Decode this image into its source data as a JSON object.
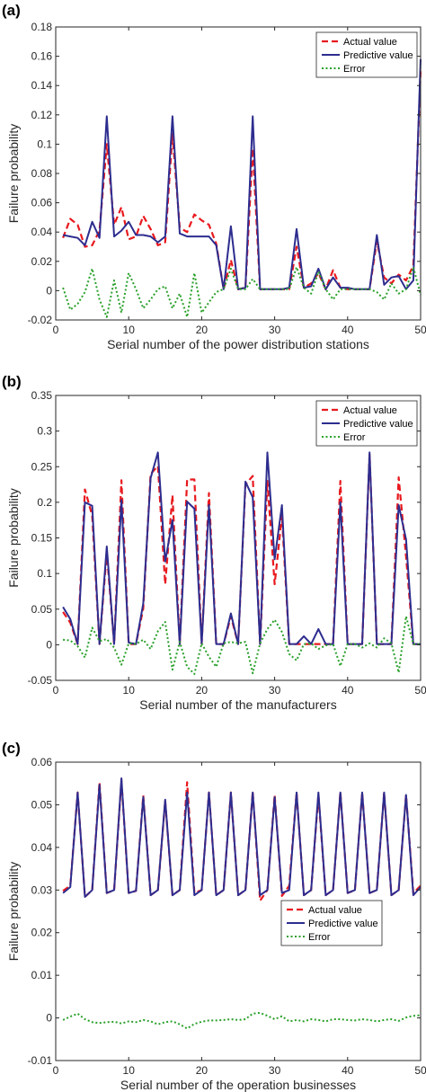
{
  "chart_data": [
    {
      "type": "line",
      "panel_label": "(a)",
      "xlabel": "Serial number of the power distribution stations",
      "ylabel": "Failure probability",
      "xlim": [
        0,
        50
      ],
      "ylim": [
        -0.02,
        0.18
      ],
      "xticks": [
        0,
        10,
        20,
        30,
        40,
        50
      ],
      "xtick_labels": [
        "0",
        "10",
        "20",
        "30",
        "40",
        "50"
      ],
      "yticks": [
        -0.02,
        0,
        0.02,
        0.04,
        0.06,
        0.08,
        0.1,
        0.12,
        0.14,
        0.16,
        0.18
      ],
      "ytick_labels": [
        "-0.02",
        "0",
        "0.02",
        "0.04",
        "0.06",
        "0.08",
        "0.1",
        "0.12",
        "0.14",
        "0.16",
        "0.18"
      ],
      "grid": false,
      "legend_position": "top-right",
      "x": [
        1,
        2,
        3,
        4,
        5,
        6,
        7,
        8,
        9,
        10,
        11,
        12,
        13,
        14,
        15,
        16,
        17,
        18,
        19,
        20,
        21,
        22,
        23,
        24,
        25,
        26,
        27,
        28,
        29,
        30,
        31,
        32,
        33,
        34,
        35,
        36,
        37,
        38,
        39,
        40,
        41,
        42,
        43,
        44,
        45,
        46,
        47,
        48,
        49,
        50
      ],
      "series": [
        {
          "name": "Actual value",
          "color": "#e8191e",
          "dash": "dashed",
          "values": [
            0.036,
            0.049,
            0.045,
            0.03,
            0.031,
            0.041,
            0.1,
            0.045,
            0.057,
            0.035,
            0.037,
            0.051,
            0.042,
            0.031,
            0.033,
            0.107,
            0.043,
            0.04,
            0.052,
            0.048,
            0.045,
            0.032,
            0.001,
            0.021,
            0.001,
            0.002,
            0.097,
            0.001,
            0.001,
            0.001,
            0.001,
            0.001,
            0.03,
            0.002,
            0.005,
            0.012,
            0.001,
            0.014,
            0.002,
            0.001,
            0.001,
            0.001,
            0.001,
            0.034,
            0.009,
            0.005,
            0.011,
            0.007,
            0.017,
            0.15
          ]
        },
        {
          "name": "Predictive value",
          "color": "#2d2d8f",
          "dash": "solid",
          "values": [
            0.038,
            0.037,
            0.036,
            0.031,
            0.047,
            0.036,
            0.119,
            0.037,
            0.041,
            0.047,
            0.038,
            0.038,
            0.037,
            0.033,
            0.037,
            0.119,
            0.039,
            0.037,
            0.037,
            0.037,
            0.037,
            0.031,
            0.001,
            0.044,
            0.001,
            0.002,
            0.119,
            0.001,
            0.001,
            0.001,
            0.001,
            0.002,
            0.042,
            0.002,
            0.003,
            0.015,
            0.001,
            0.009,
            0.002,
            0.002,
            0.001,
            0.001,
            0.001,
            0.038,
            0.004,
            0.009,
            0.01,
            0.001,
            0.007,
            0.158
          ]
        },
        {
          "name": "Error",
          "color": "#2aa02a",
          "dash": "dotted",
          "values": [
            0.002,
            -0.013,
            -0.009,
            -0.001,
            0.015,
            -0.006,
            -0.018,
            0.007,
            -0.015,
            0.012,
            0.001,
            -0.012,
            -0.006,
            0.001,
            0.003,
            -0.012,
            -0.002,
            -0.018,
            0.012,
            -0.015,
            -0.008,
            -0.001,
            0.001,
            0.015,
            0.001,
            0.001,
            0.008,
            0.001,
            0.001,
            0.001,
            0.001,
            0.001,
            0.016,
            0.002,
            -0.002,
            0.013,
            0.001,
            -0.006,
            0.001,
            0.001,
            0.001,
            0.001,
            0.001,
            -0.001,
            -0.006,
            0.005,
            -0.002,
            0.001,
            0.016,
            -0.003
          ]
        }
      ]
    },
    {
      "type": "line",
      "panel_label": "(b)",
      "xlabel": "Serial number of the manufacturers",
      "ylabel": "Failure probability",
      "xlim": [
        0,
        50
      ],
      "ylim": [
        -0.05,
        0.35
      ],
      "xticks": [
        0,
        10,
        20,
        30,
        40,
        50
      ],
      "xtick_labels": [
        "0",
        "10",
        "20",
        "30",
        "40",
        "50"
      ],
      "yticks": [
        -0.05,
        0,
        0.05,
        0.1,
        0.15,
        0.2,
        0.25,
        0.3,
        0.35
      ],
      "ytick_labels": [
        "-0.05",
        "0",
        "0.05",
        "0.1",
        "0.15",
        "0.2",
        "0.25",
        "0.3",
        "0.35"
      ],
      "grid": false,
      "legend_position": "top-right",
      "x": [
        1,
        2,
        3,
        4,
        5,
        6,
        7,
        8,
        9,
        10,
        11,
        12,
        13,
        14,
        15,
        16,
        17,
        18,
        19,
        20,
        21,
        22,
        23,
        24,
        25,
        26,
        27,
        28,
        29,
        30,
        31,
        32,
        33,
        34,
        35,
        36,
        37,
        38,
        39,
        40,
        41,
        42,
        43,
        44,
        45,
        46,
        47,
        48,
        49,
        50
      ],
      "series": [
        {
          "name": "Actual value",
          "color": "#e8191e",
          "dash": "dashed",
          "values": [
            0.046,
            0.031,
            0.001,
            0.218,
            0.181,
            0.001,
            0.13,
            0.001,
            0.231,
            0.001,
            0.001,
            0.051,
            0.24,
            0.251,
            0.085,
            0.21,
            0.001,
            0.232,
            0.232,
            0.001,
            0.213,
            0.001,
            0.001,
            0.04,
            0.001,
            0.225,
            0.237,
            0.001,
            0.23,
            0.085,
            0.181,
            0.001,
            0.001,
            0.001,
            0.001,
            0.001,
            0.001,
            0.001,
            0.23,
            0.001,
            0.001,
            0.001,
            0.268,
            0.001,
            0.001,
            0.001,
            0.235,
            0.124,
            0.001,
            0.001
          ]
        },
        {
          "name": "Predictive value",
          "color": "#2d2d8f",
          "dash": "solid",
          "values": [
            0.053,
            0.036,
            0.001,
            0.2,
            0.195,
            0.001,
            0.138,
            0.001,
            0.203,
            0.003,
            0.001,
            0.058,
            0.234,
            0.27,
            0.117,
            0.175,
            0.001,
            0.201,
            0.191,
            0.001,
            0.196,
            0.001,
            0.001,
            0.044,
            0.001,
            0.229,
            0.207,
            0.001,
            0.27,
            0.12,
            0.196,
            0.001,
            0.001,
            0.012,
            0.001,
            0.022,
            0.001,
            0.001,
            0.2,
            0.001,
            0.001,
            0.001,
            0.27,
            0.001,
            0.001,
            0.001,
            0.196,
            0.148,
            0.001,
            0.001
          ]
        },
        {
          "name": "Error",
          "color": "#2aa02a",
          "dash": "dotted",
          "values": [
            0.007,
            0.006,
            -0.002,
            -0.018,
            0.024,
            0.005,
            0.008,
            -0.004,
            -0.028,
            0.002,
            0.001,
            0.007,
            -0.006,
            0.019,
            0.032,
            -0.035,
            0.004,
            -0.031,
            -0.041,
            0.002,
            -0.017,
            -0.031,
            0.002,
            0.004,
            0.002,
            0.004,
            -0.04,
            0.002,
            0.022,
            0.035,
            0.018,
            -0.013,
            -0.022,
            0.001,
            0.002,
            -0.006,
            -0.001,
            0.001,
            -0.03,
            0.001,
            0.001,
            -0.004,
            0.002,
            -0.004,
            0.009,
            0.002,
            -0.039,
            0.04,
            0.001,
            0.001
          ]
        }
      ]
    },
    {
      "type": "line",
      "panel_label": "(c)",
      "xlabel": "Serial number of the operation businesses",
      "ylabel": "Failure probability",
      "xlim": [
        0,
        50
      ],
      "ylim": [
        -0.01,
        0.06
      ],
      "xticks": [
        0,
        10,
        20,
        30,
        40,
        50
      ],
      "xtick_labels": [
        "0",
        "10",
        "20",
        "30",
        "40",
        "50"
      ],
      "yticks": [
        -0.01,
        0,
        0.01,
        0.02,
        0.03,
        0.04,
        0.05,
        0.06
      ],
      "ytick_labels": [
        "-0.01",
        "0",
        "0.01",
        "0.02",
        "0.03",
        "0.04",
        "0.05",
        "0.06"
      ],
      "grid": false,
      "legend_position": "center-right",
      "x": [
        1,
        2,
        3,
        4,
        5,
        6,
        7,
        8,
        9,
        10,
        11,
        12,
        13,
        14,
        15,
        16,
        17,
        18,
        19,
        20,
        21,
        22,
        23,
        24,
        25,
        26,
        27,
        28,
        29,
        30,
        31,
        32,
        33,
        34,
        35,
        36,
        37,
        38,
        39,
        40,
        41,
        42,
        43,
        44,
        45,
        46,
        47,
        48,
        49,
        50
      ],
      "series": [
        {
          "name": "Actual value",
          "color": "#e8191e",
          "dash": "dashed",
          "values": [
            0.0298,
            0.031,
            0.0529,
            0.0284,
            0.03,
            0.0553,
            0.0293,
            0.03,
            0.0558,
            0.0293,
            0.0298,
            0.0522,
            0.0288,
            0.03,
            0.0509,
            0.0288,
            0.03,
            0.0553,
            0.0293,
            0.03,
            0.0529,
            0.0288,
            0.03,
            0.0529,
            0.0288,
            0.03,
            0.0531,
            0.0275,
            0.03,
            0.0523,
            0.0286,
            0.031,
            0.0529,
            0.0288,
            0.03,
            0.0523,
            0.0288,
            0.03,
            0.053,
            0.0293,
            0.03,
            0.0529,
            0.0293,
            0.03,
            0.0529,
            0.0288,
            0.03,
            0.0523,
            0.0293,
            0.031
          ]
        },
        {
          "name": "Predictive value",
          "color": "#2d2d8f",
          "dash": "solid",
          "values": [
            0.0293,
            0.0307,
            0.0529,
            0.0284,
            0.03,
            0.0547,
            0.0293,
            0.03,
            0.0562,
            0.0293,
            0.0298,
            0.0518,
            0.0288,
            0.03,
            0.0512,
            0.0288,
            0.03,
            0.0529,
            0.0288,
            0.03,
            0.0529,
            0.0288,
            0.03,
            0.0529,
            0.0288,
            0.03,
            0.0529,
            0.0288,
            0.03,
            0.0518,
            0.0293,
            0.03,
            0.0529,
            0.0288,
            0.03,
            0.0529,
            0.0288,
            0.03,
            0.0529,
            0.0293,
            0.03,
            0.0529,
            0.0293,
            0.03,
            0.0529,
            0.0288,
            0.03,
            0.0523,
            0.0288,
            0.0307
          ]
        },
        {
          "name": "Error",
          "color": "#2aa02a",
          "dash": "dotted",
          "values": [
            -0.0005,
            0.0003,
            0.001,
            -0.0003,
            -0.001,
            -0.0012,
            -0.001,
            -0.0009,
            -0.0013,
            -0.0008,
            -0.001,
            -0.0005,
            -0.0008,
            -0.0015,
            -0.001,
            -0.0008,
            -0.0015,
            -0.0025,
            -0.0014,
            -0.0009,
            -0.0006,
            -0.0006,
            -0.0005,
            -0.0003,
            -0.0005,
            -0.0003,
            0.001,
            0.0012,
            0.0005,
            -0.0003,
            0.0004,
            -0.0008,
            -0.0005,
            -0.0008,
            -0.0003,
            -0.0005,
            -0.0008,
            -0.0003,
            -0.0003,
            -0.0005,
            -0.0006,
            -0.0003,
            -0.0005,
            -0.0008,
            -0.0005,
            -0.0003,
            -0.0007,
            0.0001,
            0.0005,
            0.0006
          ]
        }
      ]
    }
  ]
}
